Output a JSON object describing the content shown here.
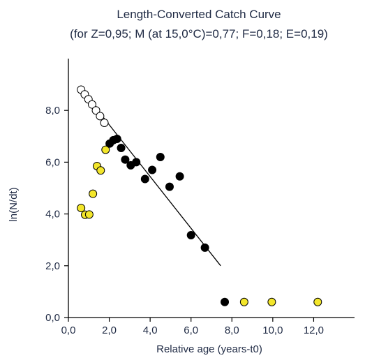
{
  "chart_data": {
    "type": "scatter",
    "title": "Length-Converted Catch Curve",
    "subtitle": "(for Z=0,95; M (at 15,0°C)=0,77; F=0,18; E=0,19)",
    "xlabel": "Relative age (years-t0)",
    "ylabel": "ln(N/dt)",
    "xlim": [
      0,
      14
    ],
    "ylim": [
      0,
      10
    ],
    "x_ticks": [
      {
        "value": 0,
        "label": "0,0"
      },
      {
        "value": 2,
        "label": "2,0"
      },
      {
        "value": 4,
        "label": "4,0"
      },
      {
        "value": 6,
        "label": "6,0"
      },
      {
        "value": 8,
        "label": "8,0"
      },
      {
        "value": 10,
        "label": "10,0"
      },
      {
        "value": 12,
        "label": "12,0"
      }
    ],
    "y_ticks": [
      {
        "value": 0,
        "label": "0,0"
      },
      {
        "value": 2,
        "label": "2,0"
      },
      {
        "value": 4,
        "label": "4,0"
      },
      {
        "value": 6,
        "label": "6,0"
      },
      {
        "value": 8,
        "label": "8,0"
      }
    ],
    "grid": false,
    "series": [
      {
        "color": "#ffffff",
        "stroke": "#000000",
        "points": [
          {
            "x": 0.62,
            "y": 8.8
          },
          {
            "x": 0.8,
            "y": 8.62
          },
          {
            "x": 0.98,
            "y": 8.43
          },
          {
            "x": 1.16,
            "y": 8.23
          },
          {
            "x": 1.35,
            "y": 8.0
          },
          {
            "x": 1.55,
            "y": 7.78
          },
          {
            "x": 1.76,
            "y": 7.52
          }
        ]
      },
      {
        "color": "#f3e62a",
        "stroke": "#000000",
        "points": [
          {
            "x": 0.62,
            "y": 4.23
          },
          {
            "x": 0.82,
            "y": 3.97
          },
          {
            "x": 1.02,
            "y": 3.98
          },
          {
            "x": 1.2,
            "y": 4.78
          },
          {
            "x": 1.4,
            "y": 5.85
          },
          {
            "x": 1.58,
            "y": 5.68
          },
          {
            "x": 1.82,
            "y": 6.48
          },
          {
            "x": 8.6,
            "y": 0.6
          },
          {
            "x": 9.95,
            "y": 0.6
          },
          {
            "x": 12.2,
            "y": 0.6
          }
        ]
      },
      {
        "color": "#000000",
        "stroke": "#000000",
        "points": [
          {
            "x": 2.02,
            "y": 6.72
          },
          {
            "x": 2.2,
            "y": 6.85
          },
          {
            "x": 2.38,
            "y": 6.9
          },
          {
            "x": 2.58,
            "y": 6.55
          },
          {
            "x": 2.78,
            "y": 6.1
          },
          {
            "x": 3.05,
            "y": 5.88
          },
          {
            "x": 3.32,
            "y": 6.0
          },
          {
            "x": 3.75,
            "y": 5.35
          },
          {
            "x": 4.1,
            "y": 5.7
          },
          {
            "x": 4.5,
            "y": 6.2
          },
          {
            "x": 4.95,
            "y": 5.05
          },
          {
            "x": 5.45,
            "y": 5.45
          },
          {
            "x": 6.0,
            "y": 3.18
          },
          {
            "x": 6.68,
            "y": 2.7
          },
          {
            "x": 7.65,
            "y": 0.6
          }
        ]
      }
    ],
    "regression_line": {
      "x": [
        0.62,
        7.45
      ],
      "y": [
        8.82,
        2.0
      ],
      "color": "#000000"
    }
  }
}
